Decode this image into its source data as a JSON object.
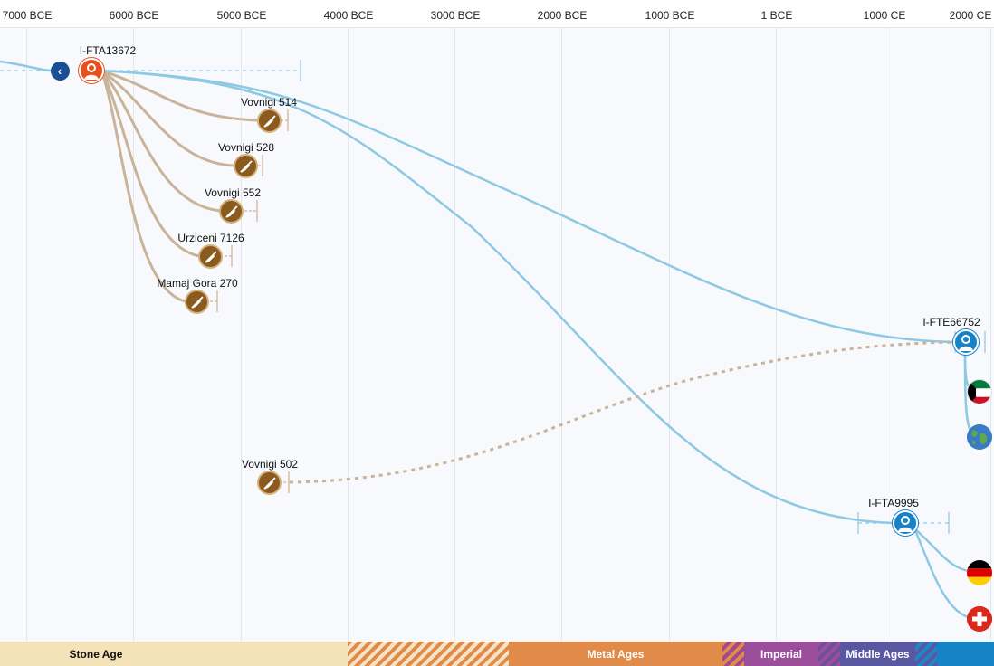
{
  "axis": {
    "ticks": [
      "7000 BCE",
      "6000 BCE",
      "5000 BCE",
      "4000 BCE",
      "3000 BCE",
      "2000 BCE",
      "1000 BCE",
      "1 BCE",
      "1000 CE",
      "2000 CE"
    ]
  },
  "nodes": {
    "root": {
      "label": "I-FTA13672"
    },
    "s514": {
      "label": "Vovnigi 514"
    },
    "s528": {
      "label": "Vovnigi 528"
    },
    "s552": {
      "label": "Vovnigi 552"
    },
    "s7126": {
      "label": "Urziceni 7126"
    },
    "s270": {
      "label": "Mamaj Gora 270"
    },
    "s502": {
      "label": "Vovnigi 502"
    },
    "fte": {
      "label": "I-FTE66752"
    },
    "fta": {
      "label": "I-FTA9995"
    }
  },
  "eras": {
    "stone": "Stone Age",
    "metal": "Metal Ages",
    "imperial": "Imperial",
    "middle": "Middle Ages"
  },
  "colors": {
    "lineage_blue": "#8ec9e4",
    "sample_tan": "#c9b49a",
    "root_red": "#e8501e",
    "person_blue": "#1683c7",
    "sample_brown": "#8b5a1e"
  },
  "icons": {
    "back": "chevron-left-icon",
    "sample": "trowel-icon",
    "person": "person-icon",
    "flag_kuwait": "kuwait-flag-icon",
    "globe": "globe-icon",
    "flag_germany": "germany-flag-icon",
    "flag_swiss": "switzerland-flag-icon"
  }
}
